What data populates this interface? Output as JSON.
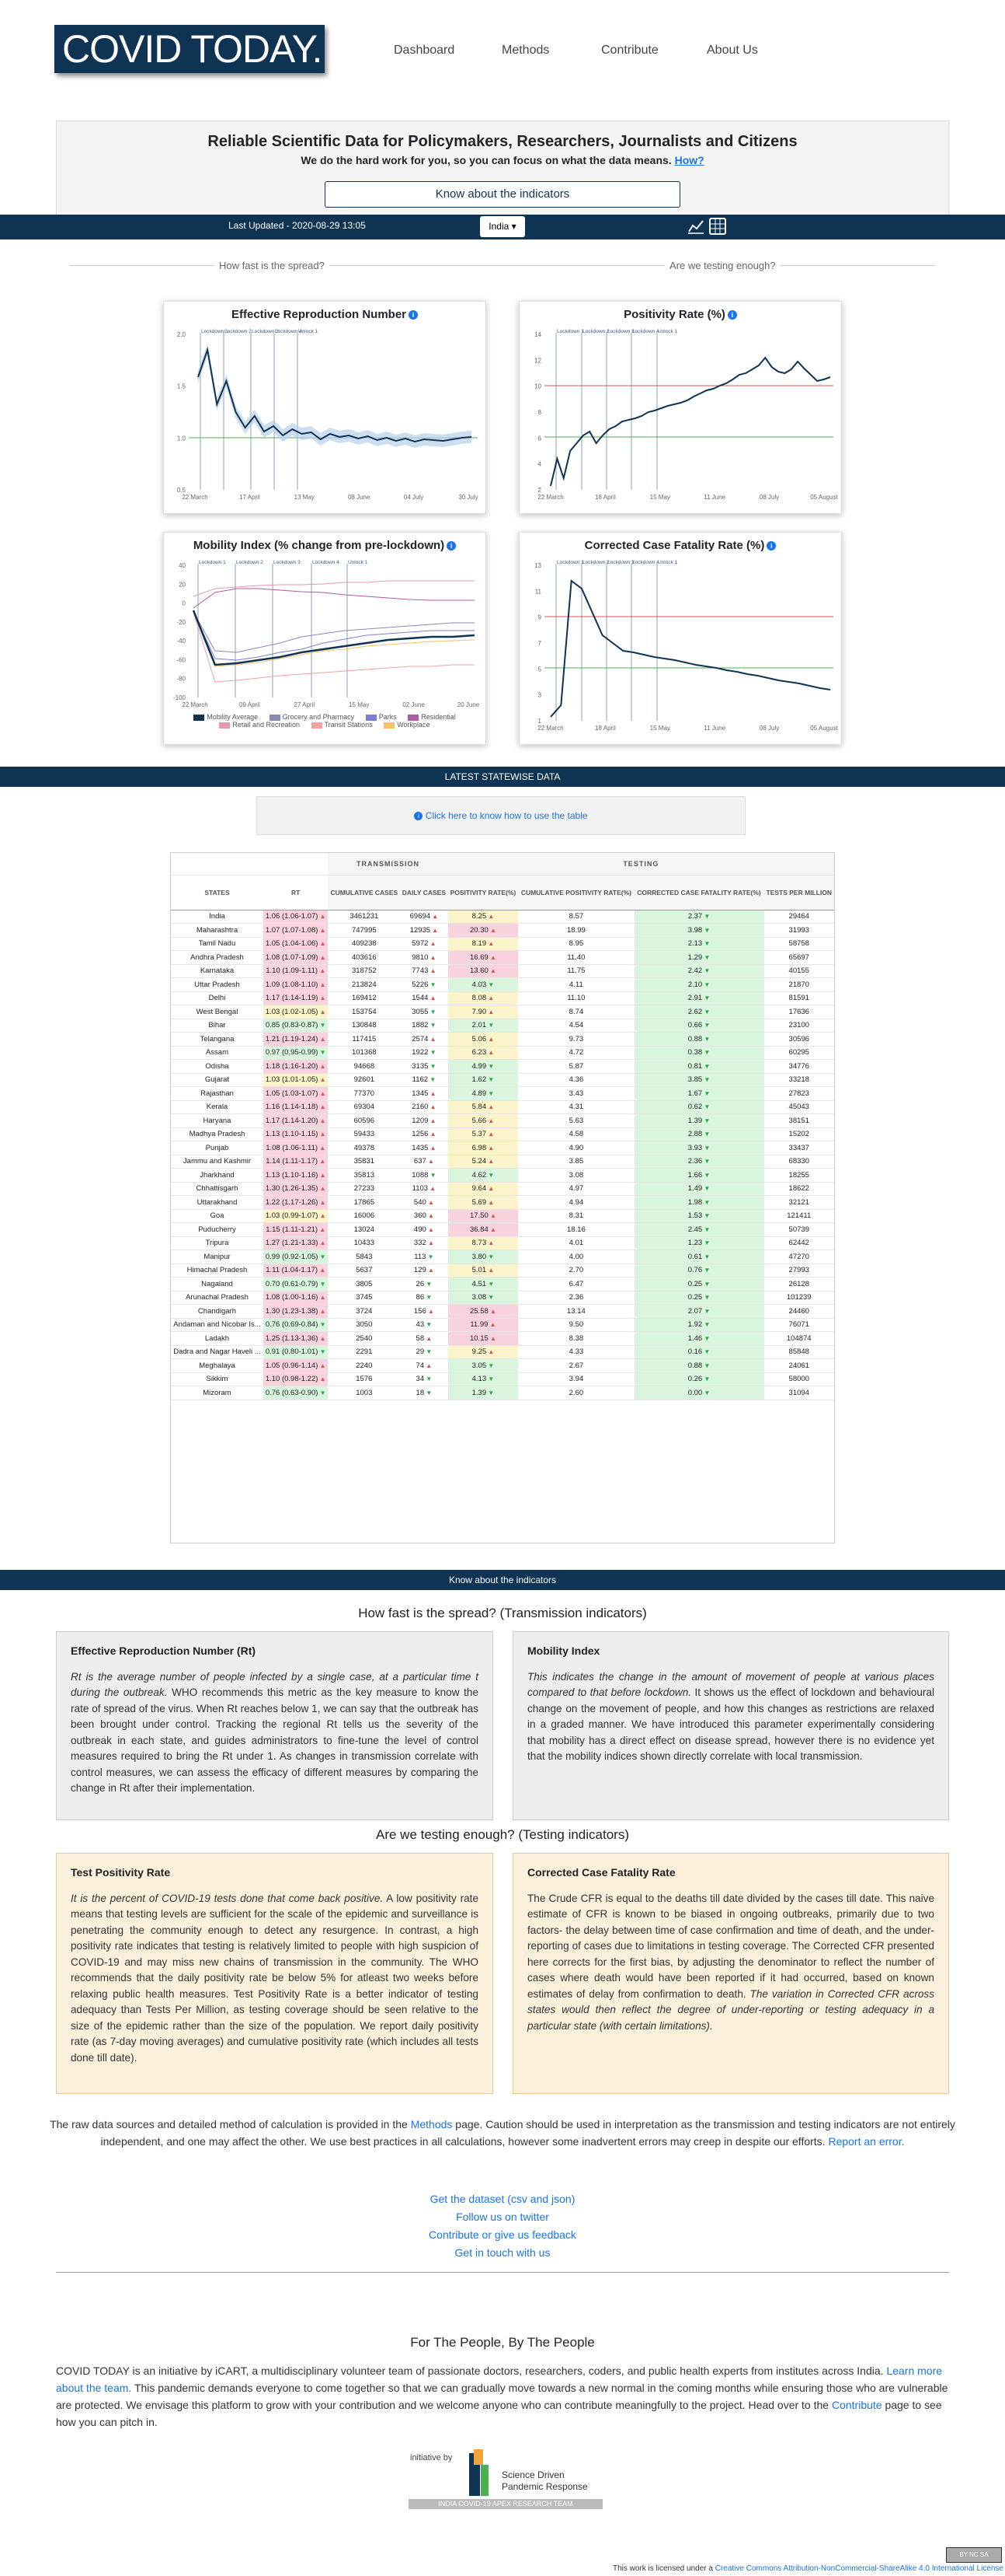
{
  "brand": "COVID TODAY.",
  "nav": [
    "Dashboard",
    "Methods",
    "Contribute",
    "About Us"
  ],
  "banner": {
    "title": "Reliable Scientific Data for Policymakers, Researchers, Journalists and Citizens",
    "subtitle": "We do the hard work for you, so you can focus on what the data means.",
    "how": "How?"
  },
  "know_btn": "Know about the indicators",
  "status": {
    "last_updated": "Last Updated - 2020-08-29 13:05",
    "region": "India"
  },
  "sections": {
    "spread": "How fast is the spread?",
    "testing": "Are we testing enough?"
  },
  "charts": {
    "rt": {
      "title": "Effective Reproduction Number",
      "yticks": [
        "2.0",
        "1.5",
        "1.0",
        "0.5"
      ],
      "xticks": [
        "22 March",
        "17 April",
        "13 May",
        "08 June",
        "04 July",
        "30 July"
      ],
      "lockdowns": [
        "Lockdown 1",
        "Lockdown 2",
        "Lockdown 3",
        "Lockdown 4",
        "Unlock 1"
      ]
    },
    "pos": {
      "title": "Positivity Rate (%)",
      "yticks": [
        "14",
        "12",
        "10",
        "8",
        "6",
        "4",
        "2"
      ],
      "xticks": [
        "22 March",
        "18 April",
        "15 May",
        "11 June",
        "08 July",
        "05 August"
      ],
      "lockdowns": [
        "Lockdown 1",
        "Lockdown 2",
        "Lockdown 3",
        "Lockdown 4",
        "Unlock 1"
      ]
    },
    "mob": {
      "title": "Mobility Index (% change from pre-lockdown)",
      "yticks": [
        "40",
        "20",
        "0",
        "-20",
        "-40",
        "-60",
        "-80",
        "-100"
      ],
      "xticks": [
        "22 March",
        "09 April",
        "27 April",
        "15 May",
        "02 June",
        "20 June"
      ],
      "lockdowns": [
        "Lockdown 1",
        "Lockdown 2",
        "Lockdown 3",
        "Lockdown 4",
        "Unlock 1"
      ],
      "legend": [
        "Mobility Average",
        "Grocery and Pharmacy",
        "Parks",
        "Residential",
        "Retail and Recreation",
        "Transit Stations",
        "Workplace"
      ]
    },
    "cfr": {
      "title": "Corrected Case Fatality Rate (%)",
      "yticks": [
        "13",
        "11",
        "9",
        "7",
        "5",
        "3",
        "1"
      ],
      "xticks": [
        "22 March",
        "18 April",
        "15 May",
        "11 June",
        "08 July",
        "05 August"
      ],
      "lockdowns": [
        "Lockdown 1",
        "Lockdown 2",
        "Lockdown 3",
        "Lockdown 4",
        "Unlock 1"
      ]
    }
  },
  "colors": {
    "navy": "#0f3352",
    "red": "#d9534f",
    "green": "#28a745"
  },
  "statewise": {
    "title": "LATEST STATEWISE DATA",
    "help": "Click here to know how to use the table",
    "groups": [
      "TRANSMISSION",
      "TESTING"
    ],
    "headers": [
      "STATES",
      "RT",
      "CUMULATIVE CASES",
      "DAILY CASES",
      "POSITIVITY RATE(%)",
      "CUMULATIVE POSITIVITY RATE(%)",
      "CORRECTED CASE FATALITY RATE(%)",
      "TESTS PER MILLION"
    ],
    "rows": [
      [
        "India",
        "1.06 (1.06-1.07)",
        "3461231",
        "69694",
        "8.25",
        "8.57",
        "2.37",
        "29464"
      ],
      [
        "Maharashtra",
        "1.07 (1.07-1.08)",
        "747995",
        "12935",
        "20.30",
        "18.99",
        "3.98",
        "31993"
      ],
      [
        "Tamil Nadu",
        "1.05 (1.04-1.06)",
        "409238",
        "5972",
        "8.19",
        "8.95",
        "2.13",
        "58758"
      ],
      [
        "Andhra Pradesh",
        "1.08 (1.07-1.09)",
        "403616",
        "9810",
        "16.69",
        "11.40",
        "1.29",
        "65697"
      ],
      [
        "Karnataka",
        "1.10 (1.09-1.11)",
        "318752",
        "7743",
        "13.60",
        "11.75",
        "2.42",
        "40155"
      ],
      [
        "Uttar Pradesh",
        "1.09 (1.08-1.10)",
        "213824",
        "5226",
        "4.03",
        "4.11",
        "2.10",
        "21870"
      ],
      [
        "Delhi",
        "1.17 (1.14-1.19)",
        "169412",
        "1544",
        "8.08",
        "11.10",
        "2.91",
        "81591"
      ],
      [
        "West Bengal",
        "1.03 (1.02-1.05)",
        "153754",
        "3055",
        "7.90",
        "8.74",
        "2.62",
        "17636"
      ],
      [
        "Bihar",
        "0.85 (0.83-0.87)",
        "130848",
        "1882",
        "2.01",
        "4.54",
        "0.66",
        "23100"
      ],
      [
        "Telangana",
        "1.21 (1.19-1.24)",
        "117415",
        "2574",
        "5.06",
        "9.73",
        "0.88",
        "30596"
      ],
      [
        "Assam",
        "0.97 (0.95-0.99)",
        "101368",
        "1922",
        "6.23",
        "4.72",
        "0.38",
        "60295"
      ],
      [
        "Odisha",
        "1.18 (1.16-1.20)",
        "94668",
        "3135",
        "4.99",
        "5.87",
        "0.81",
        "34776"
      ],
      [
        "Gujarat",
        "1.03 (1.01-1.05)",
        "92601",
        "1162",
        "1.62",
        "4.36",
        "3.85",
        "33218"
      ],
      [
        "Rajasthan",
        "1.05 (1.03-1.07)",
        "77370",
        "1345",
        "4.89",
        "3.43",
        "1.67",
        "27823"
      ],
      [
        "Kerala",
        "1.16 (1.14-1.18)",
        "69304",
        "2160",
        "5.84",
        "4.31",
        "0.62",
        "45043"
      ],
      [
        "Haryana",
        "1.17 (1.14-1.20)",
        "60596",
        "1209",
        "5.66",
        "5.63",
        "1.39",
        "38151"
      ],
      [
        "Madhya Pradesh",
        "1.13 (1.10-1.15)",
        "59433",
        "1256",
        "5.37",
        "4.58",
        "2.88",
        "15202"
      ],
      [
        "Punjab",
        "1.08 (1.06-1.11)",
        "49378",
        "1435",
        "6.98",
        "4.90",
        "3.93",
        "33437"
      ],
      [
        "Jammu and Kashmir",
        "1.14 (1.11-1.17)",
        "35831",
        "637",
        "5.24",
        "3.85",
        "2.36",
        "68330"
      ],
      [
        "Jharkhand",
        "1.13 (1.10-1.16)",
        "35813",
        "1088",
        "4.62",
        "3.08",
        "1.66",
        "18255"
      ],
      [
        "Chhattisgarh",
        "1.30 (1.26-1.35)",
        "27233",
        "1103",
        "9.64",
        "4.97",
        "1.49",
        "18622"
      ],
      [
        "Uttarakhand",
        "1.22 (1.17-1.26)",
        "17865",
        "540",
        "5.69",
        "4.94",
        "1.98",
        "32121"
      ],
      [
        "Goa",
        "1.03 (0.99-1.07)",
        "16006",
        "360",
        "17.50",
        "8.31",
        "1.53",
        "121411"
      ],
      [
        "Puducherry",
        "1.15 (1.11-1.21)",
        "13024",
        "490",
        "36.84",
        "18.16",
        "2.45",
        "50739"
      ],
      [
        "Tripura",
        "1.27 (1.21-1.33)",
        "10433",
        "332",
        "8.73",
        "4.01",
        "1.23",
        "62442"
      ],
      [
        "Manipur",
        "0.99 (0.92-1.05)",
        "5843",
        "113",
        "3.80",
        "4.00",
        "0.61",
        "47270"
      ],
      [
        "Himachal Pradesh",
        "1.11 (1.04-1.17)",
        "5637",
        "129",
        "5.01",
        "2.70",
        "0.76",
        "27993"
      ],
      [
        "Nagaland",
        "0.70 (0.61-0.79)",
        "3805",
        "26",
        "4.51",
        "6.47",
        "0.25",
        "26128"
      ],
      [
        "Arunachal Pradesh",
        "1.08 (1.00-1.16)",
        "3745",
        "86",
        "3.08",
        "2.36",
        "0.25",
        "101239"
      ],
      [
        "Chandigarh",
        "1.30 (1.23-1.38)",
        "3724",
        "156",
        "25.58",
        "13.14",
        "2.07",
        "24460"
      ],
      [
        "Andaman and Nicobar Is...",
        "0.76 (0.69-0.84)",
        "3050",
        "43",
        "11.99",
        "9.50",
        "1.92",
        "76071"
      ],
      [
        "Ladakh",
        "1.25 (1.13-1.36)",
        "2540",
        "58",
        "10.15",
        "8.38",
        "1.46",
        "104874"
      ],
      [
        "Dadra and Nagar Haveli ...",
        "0.91 (0.80-1.01)",
        "2291",
        "29",
        "9.25",
        "4.33",
        "0.16",
        "85848"
      ],
      [
        "Meghalaya",
        "1.05 (0.96-1.14)",
        "2240",
        "74",
        "3.05",
        "2.67",
        "0.88",
        "24061"
      ],
      [
        "Sikkim",
        "1.10 (0.98-1.22)",
        "1576",
        "34",
        "4.13",
        "3.94",
        "0.26",
        "58000"
      ],
      [
        "Mizoram",
        "0.76 (0.63-0.90)",
        "1003",
        "18",
        "1.39",
        "2.60",
        "0.00",
        "31094"
      ]
    ]
  },
  "indicators": {
    "bar": "Know about the indicators",
    "transmission_title": "How fast is the spread? (Transmission indicators)",
    "testing_title": "Are we testing enough? (Testing indicators)",
    "rt": {
      "title": "Effective Reproduction Number (Rt)",
      "intro": "Rt is the average number of people infected by a single case, at a particular time t during the outbreak.",
      "body": "WHO recommends this metric as the key measure to know the rate of spread of the virus. When Rt reaches below 1, we can say that the outbreak has been brought under control. Tracking the regional Rt tells us the severity of the outbreak in each state, and guides administrators to fine-tune the level of control measures required to bring the Rt under 1. As changes in transmission correlate with control measures, we can assess the efficacy of different measures by comparing the change in Rt after their implementation."
    },
    "mob": {
      "title": "Mobility Index",
      "intro": "This indicates the change in the amount of movement of people at various places compared to that before lockdown.",
      "body": "It shows us the effect of lockdown and behavioural change on the movement of people, and how this changes as restrictions are relaxed in a graded manner. We have introduced this parameter experimentally considering that mobility has a direct effect on disease spread, however there is no evidence yet that the mobility indices shown directly correlate with local transmission."
    },
    "pos": {
      "title": "Test Positivity Rate",
      "intro": "It is the percent of COVID-19 tests done that come back positive.",
      "body": "A low positivity rate means that testing levels are sufficient for the scale of the epidemic and surveillance is penetrating the community enough to detect any resurgence. In contrast, a high positivity rate indicates that testing is relatively limited to people with high suspicion of COVID-19 and may miss new chains of transmission in the community. The WHO recommends that the daily positivity rate be below 5% for atleast two weeks before relaxing public health measures. Test Positivity Rate is a better indicator of testing adequacy than Tests Per Million, as testing coverage should be seen relative to the size of the epidemic rather than the size of the population. We report daily positivity rate (as 7-day moving averages) and cumulative positivity rate (which includes all tests done till date)."
    },
    "cfr": {
      "title": "Corrected Case Fatality Rate",
      "body": "The Crude CFR is equal to the deaths till date divided by the cases till date. This naive estimate of CFR is known to be biased in ongoing outbreaks, primarily due to two factors- the delay between time of case confirmation and time of death, and the under-reporting of cases due to limitations in testing coverage. The Corrected CFR presented here corrects for the first bias, by adjusting the denominator to reflect the number of cases where death would have been reported if it had occurred, based on known estimates of delay from confirmation to death.",
      "outro": "The variation in Corrected CFR across states would then reflect the degree of under-reporting or testing adequacy in a particular state (with certain limitations)."
    }
  },
  "notes": {
    "p1a": "The raw data sources and detailed method of calculation is provided in the",
    "methods": "Methods",
    "p1b": "page. Caution should be used in interpretation as the transmission and testing indicators are not entirely independent, and one may affect the other. We use best practices in all calculations, however some inadvertent errors may creep in despite our efforts.",
    "report": "Report an error."
  },
  "links": [
    "Get the dataset (csv and json)",
    "Follow us on twitter",
    "Contribute or give us feedback",
    "Get in touch with us"
  ],
  "about": {
    "title": "For The People, By The People",
    "p1": "COVID TODAY is an initiative by iCART, a multidisciplinary volunteer team of passionate doctors, researchers, coders, and public health experts from institutes across India.",
    "learn": "Learn more about the team.",
    "p2": "This pandemic demands everyone to come together so that we can gradually move towards a new normal in the coming months while ensuring those who are vulnerable are protected. We envisage this platform to grow with your contribution and we welcome anyone who can contribute meaningfully to the project. Head over to the",
    "contribute": "Contribute",
    "p3": "page to see how you can pitch in."
  },
  "initiative": {
    "by": "initiative by",
    "name": "iCART",
    "tag1": "Science Driven",
    "tag2": "Pandemic Response",
    "tagline": "INDIA COVID-19 APEX RESEARCH TEAM"
  },
  "license": {
    "text": "This work is licensed under a",
    "link": "Creative Commons Attribution-NonCommercial-ShareAlike 4.0 International License",
    "badge": "BY NC SA"
  }
}
